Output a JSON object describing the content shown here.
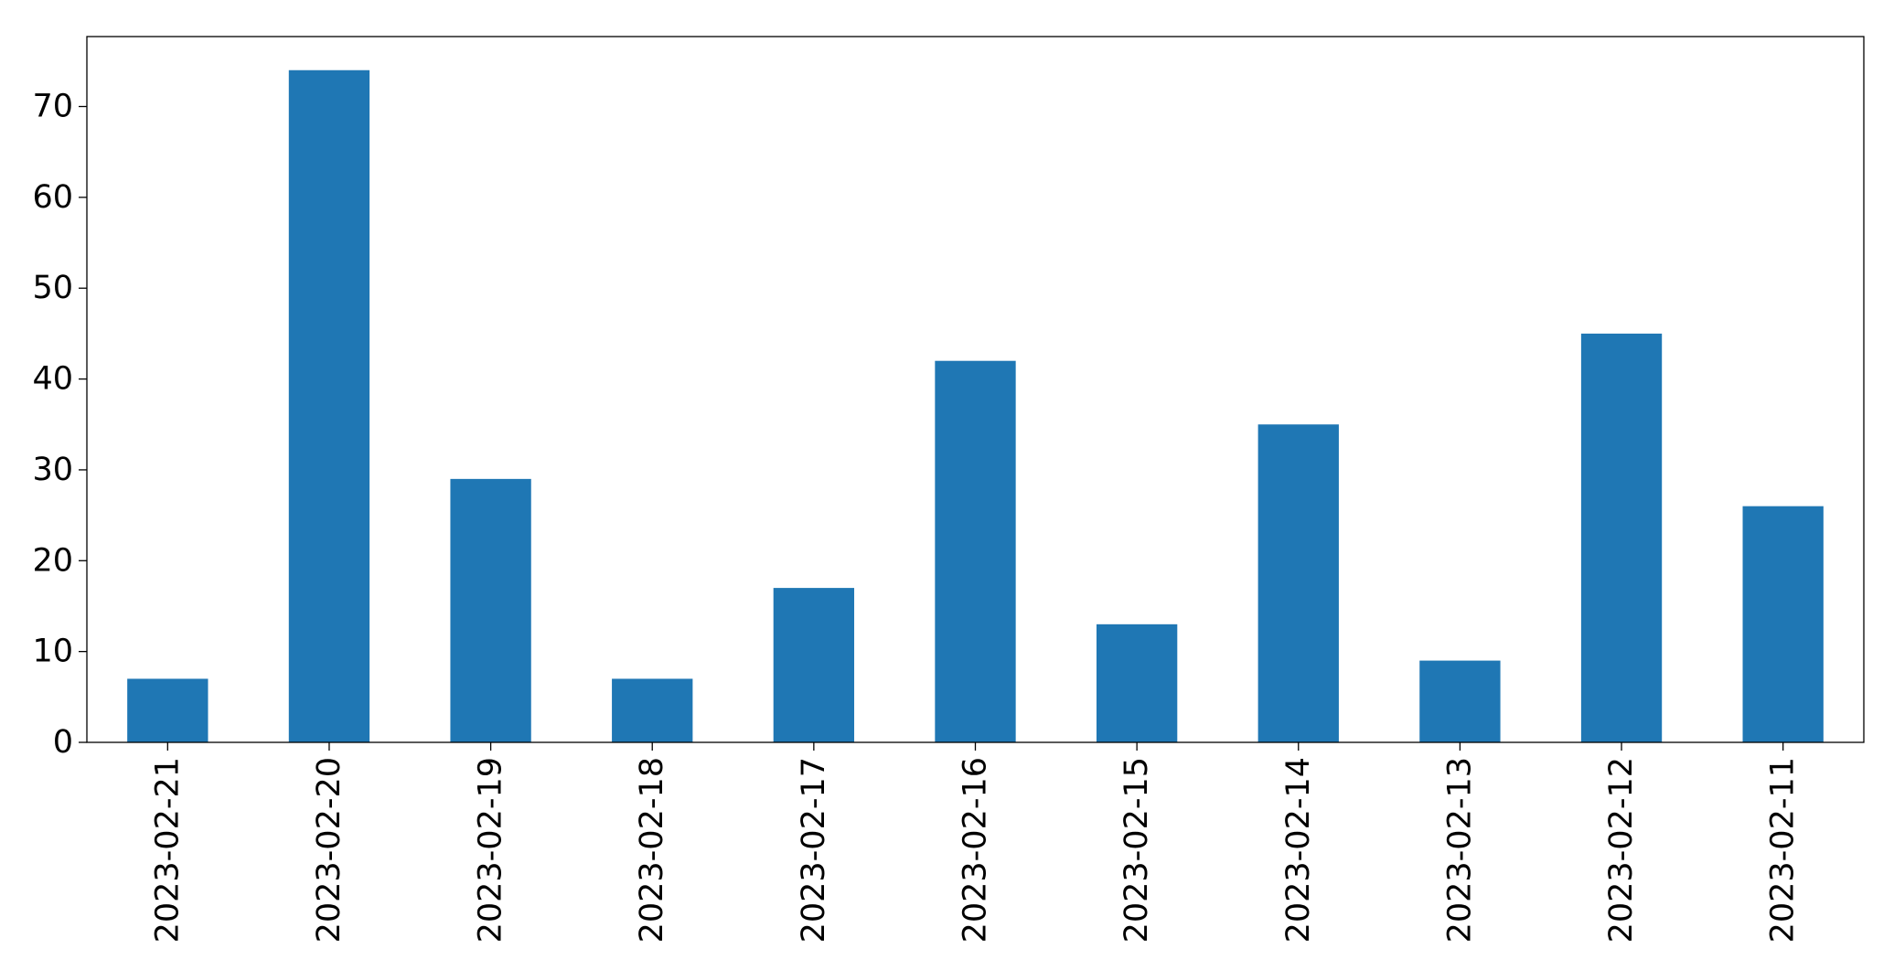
{
  "chart_data": {
    "type": "bar",
    "categories": [
      "2023-02-21",
      "2023-02-20",
      "2023-02-19",
      "2023-02-18",
      "2023-02-17",
      "2023-02-16",
      "2023-02-15",
      "2023-02-14",
      "2023-02-13",
      "2023-02-12",
      "2023-02-11"
    ],
    "values": [
      7,
      74,
      29,
      7,
      17,
      42,
      13,
      35,
      9,
      45,
      26
    ],
    "title": "",
    "xlabel": "",
    "ylabel": "",
    "ylim": [
      0,
      77.7
    ],
    "yticks": [
      0,
      10,
      20,
      30,
      40,
      50,
      60,
      70
    ],
    "bar_color": "#1f77b4",
    "grid": false,
    "legend": "none",
    "xtick_rotation": "vertical"
  }
}
